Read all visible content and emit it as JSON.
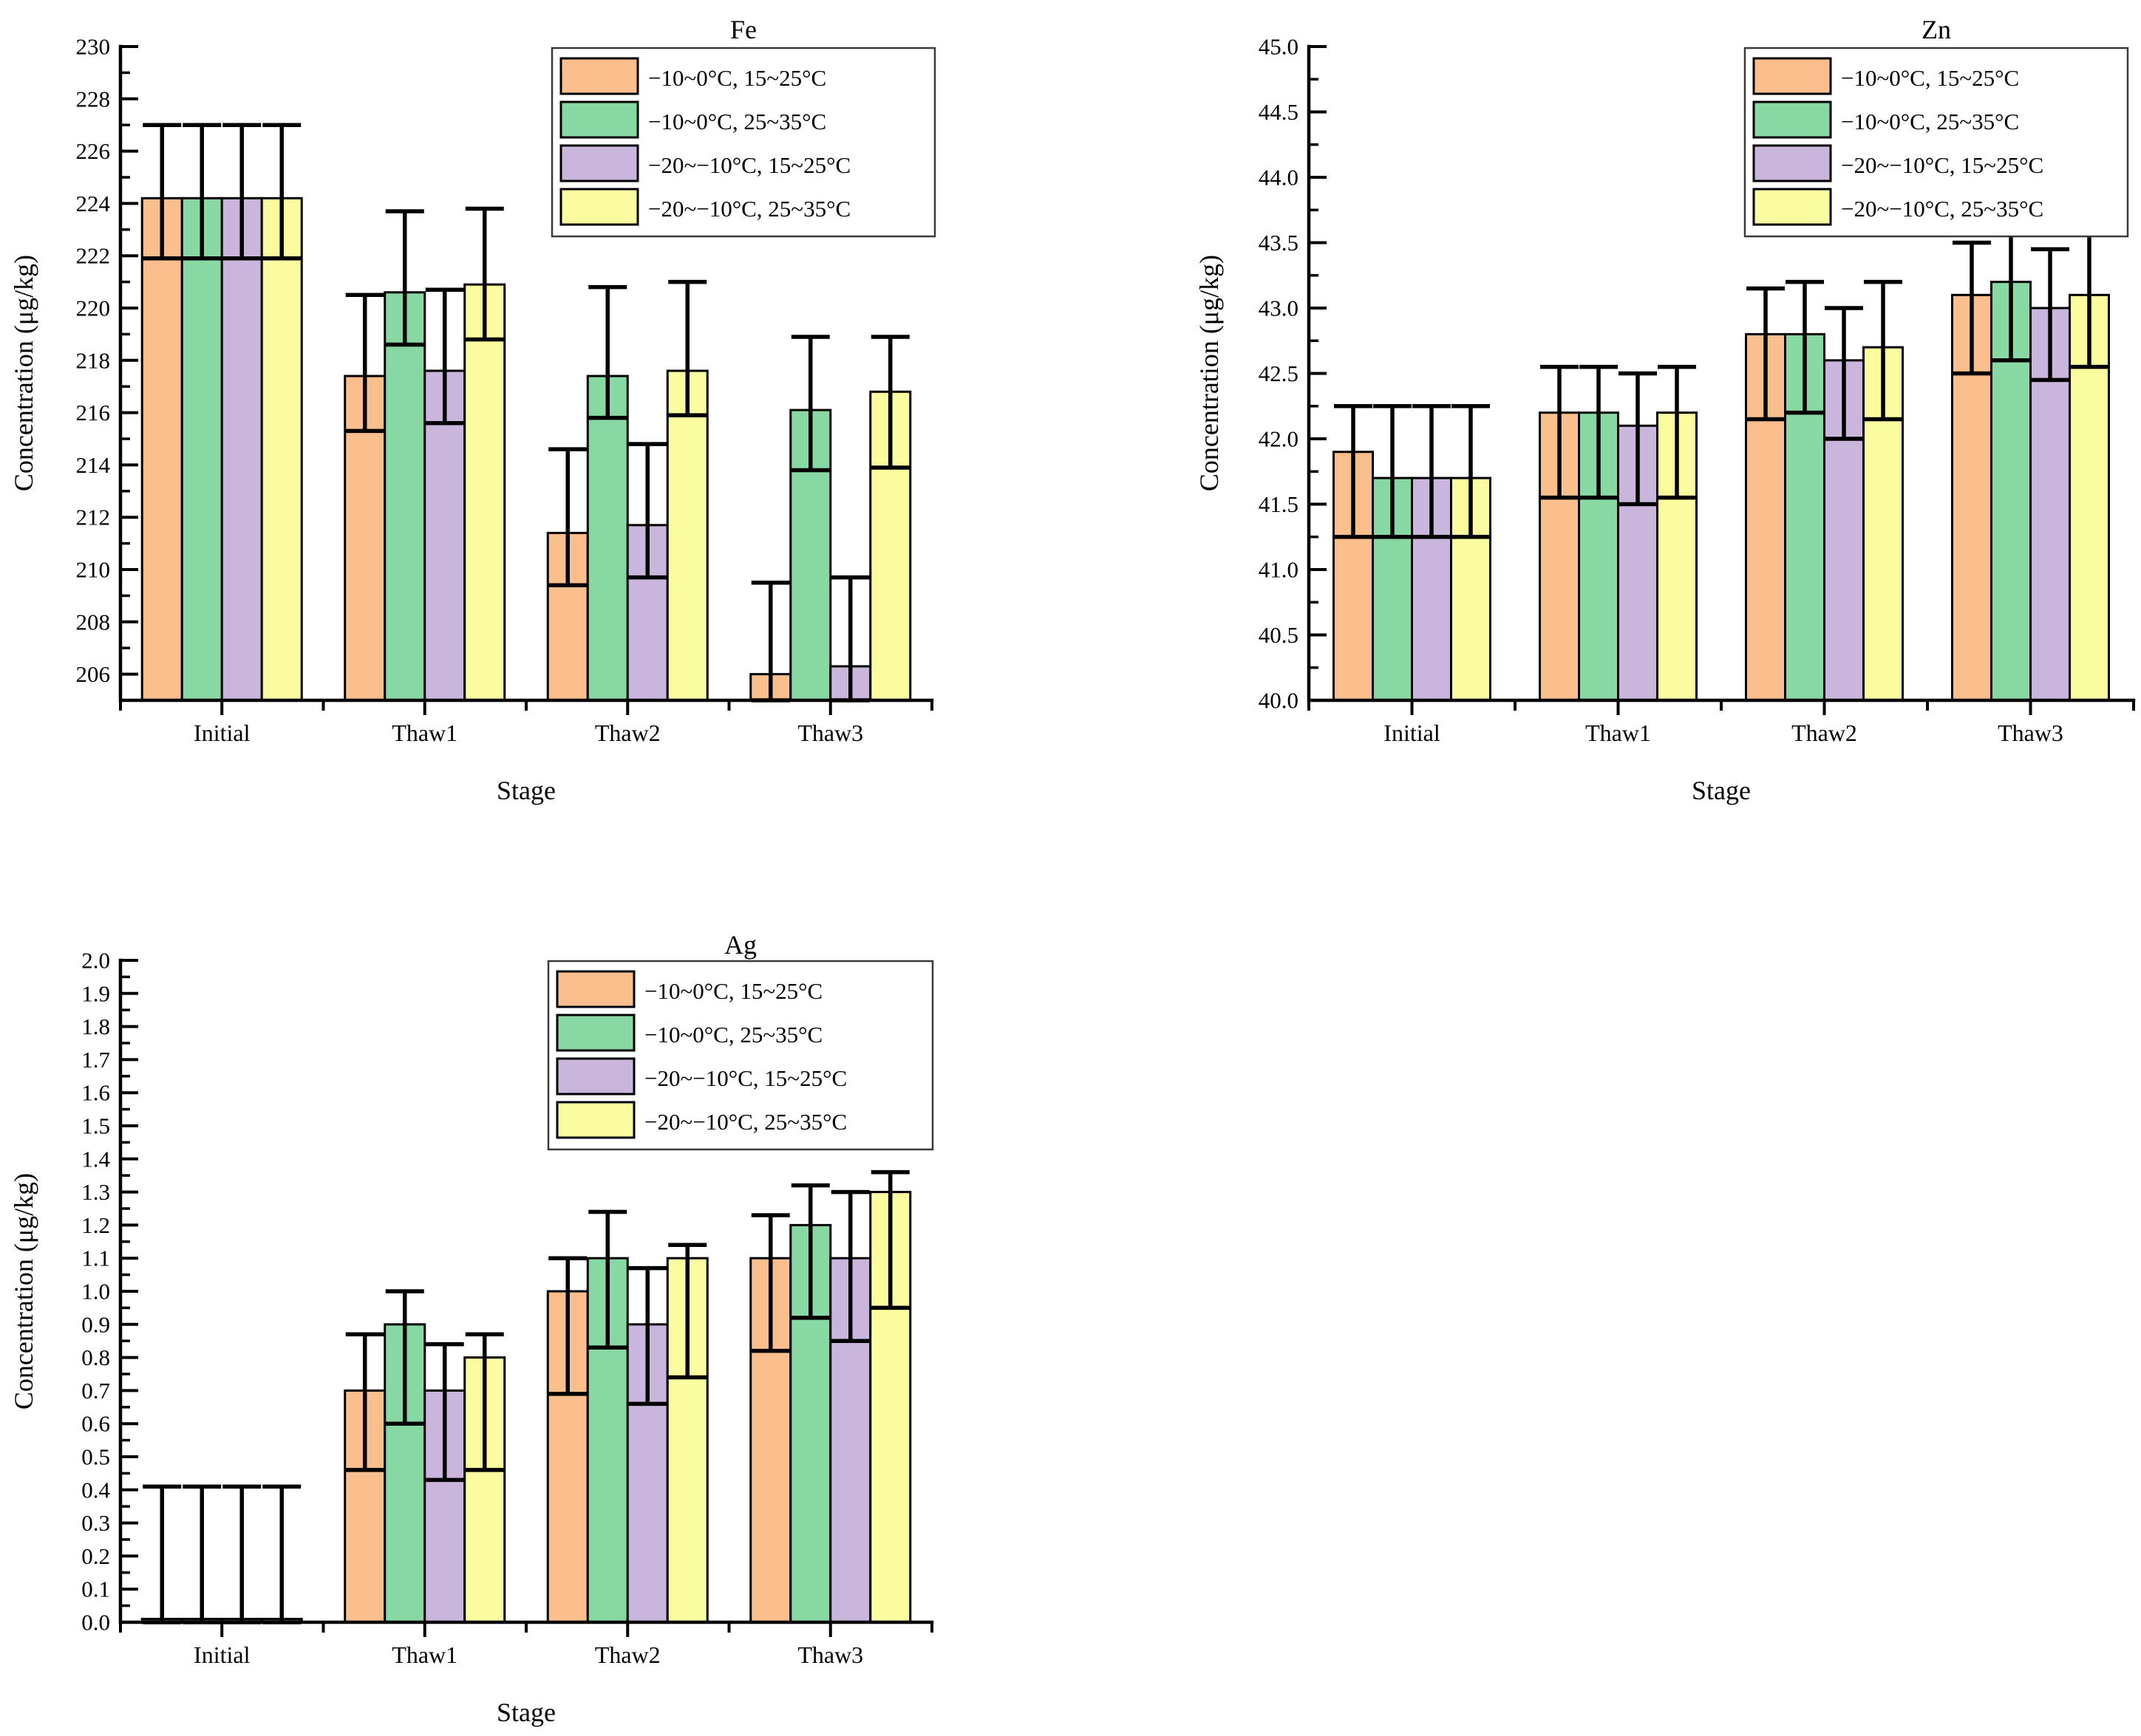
{
  "figure": {
    "background": "#FFFFFF",
    "text_color": "#000000",
    "outline_color": "#000000"
  },
  "chart_data": [
    {
      "id": "fe",
      "type": "bar",
      "title": "Fe",
      "xlabel": "Stage",
      "ylabel": "Concentration (μg/kg)",
      "categories": [
        "Initial",
        "Thaw1",
        "Thaw2",
        "Thaw3"
      ],
      "ylim": [
        205,
        230
      ],
      "ytick_step": 2,
      "ytick_minor_step": 1,
      "ytick_label_min": 206,
      "ytick_decimals": 0,
      "legend_position": "top-right",
      "grid": false,
      "series": [
        {
          "name": "−10~0°C, 15~25°C",
          "color": "#FBBF8D",
          "values": [
            224.2,
            217.4,
            211.4,
            206.0
          ],
          "err_low": [
            221.9,
            215.3,
            209.4,
            202.5
          ],
          "err_high": [
            227.0,
            220.5,
            214.6,
            209.5
          ]
        },
        {
          "name": "−10~0°C, 25~35°C",
          "color": "#88D8A3",
          "values": [
            224.2,
            220.6,
            217.4,
            216.1
          ],
          "err_low": [
            221.9,
            218.6,
            215.8,
            213.8
          ],
          "err_high": [
            227.0,
            223.7,
            220.8,
            218.9
          ]
        },
        {
          "name": "−20~−10°C, 15~25°C",
          "color": "#CAB6DD",
          "values": [
            224.2,
            217.6,
            211.7,
            206.3
          ],
          "err_low": [
            221.9,
            215.6,
            209.7,
            202.8
          ],
          "err_high": [
            227.0,
            220.7,
            214.8,
            209.7
          ]
        },
        {
          "name": "−20~−10°C, 25~35°C",
          "color": "#FBFB9F",
          "values": [
            224.2,
            220.9,
            217.6,
            216.8
          ],
          "err_low": [
            221.9,
            218.8,
            215.9,
            213.9
          ],
          "err_high": [
            227.0,
            223.8,
            221.0,
            218.9
          ]
        }
      ]
    },
    {
      "id": "zn",
      "type": "bar",
      "title": "Zn",
      "xlabel": "Stage",
      "ylabel": "Concentration (μg/kg)",
      "categories": [
        "Initial",
        "Thaw1",
        "Thaw2",
        "Thaw3"
      ],
      "ylim": [
        40.0,
        45.0
      ],
      "ytick_step": 0.5,
      "ytick_minor_step": 0.25,
      "ytick_label_min": 40.0,
      "ytick_decimals": 1,
      "legend_position": "top-right",
      "grid": false,
      "series": [
        {
          "name": "−10~0°C, 15~25°C",
          "color": "#FBBF8D",
          "values": [
            41.9,
            42.2,
            42.8,
            43.1
          ],
          "err_low": [
            41.25,
            41.55,
            42.15,
            42.5
          ],
          "err_high": [
            42.25,
            42.55,
            43.15,
            43.5
          ]
        },
        {
          "name": "−10~0°C, 25~35°C",
          "color": "#88D8A3",
          "values": [
            41.7,
            42.2,
            42.8,
            43.2
          ],
          "err_low": [
            41.25,
            41.55,
            42.2,
            42.6
          ],
          "err_high": [
            42.25,
            42.55,
            43.2,
            43.6
          ]
        },
        {
          "name": "−20~−10°C, 15~25°C",
          "color": "#CAB6DD",
          "values": [
            41.7,
            42.1,
            42.6,
            43.0
          ],
          "err_low": [
            41.25,
            41.5,
            42.0,
            42.45
          ],
          "err_high": [
            42.25,
            42.5,
            43.0,
            43.45
          ]
        },
        {
          "name": "−20~−10°C, 25~35°C",
          "color": "#FBFB9F",
          "values": [
            41.7,
            42.2,
            42.7,
            43.1
          ],
          "err_low": [
            41.25,
            41.55,
            42.15,
            42.55
          ],
          "err_high": [
            42.25,
            42.55,
            43.2,
            43.6
          ]
        }
      ]
    },
    {
      "id": "ag",
      "type": "bar",
      "title": "Ag",
      "xlabel": "Stage",
      "ylabel": "Concentration (μg/kg)",
      "categories": [
        "Initial",
        "Thaw1",
        "Thaw2",
        "Thaw3"
      ],
      "ylim": [
        0.0,
        2.0
      ],
      "ytick_step": 0.1,
      "ytick_minor_step": 0.05,
      "ytick_label_min": 0.0,
      "ytick_decimals": 1,
      "legend_position": "top-right",
      "grid": false,
      "series": [
        {
          "name": "−10~0°C, 15~25°C",
          "color": "#FBBF8D",
          "values": [
            0.01,
            0.7,
            1.0,
            1.1
          ],
          "err_low": [
            0.0,
            0.46,
            0.69,
            0.82
          ],
          "err_high": [
            0.41,
            0.87,
            1.1,
            1.23
          ]
        },
        {
          "name": "−10~0°C, 25~35°C",
          "color": "#88D8A3",
          "values": [
            0.01,
            0.9,
            1.1,
            1.2
          ],
          "err_low": [
            0.0,
            0.6,
            0.83,
            0.92
          ],
          "err_high": [
            0.41,
            1.0,
            1.24,
            1.32
          ]
        },
        {
          "name": "−20~−10°C, 15~25°C",
          "color": "#CAB6DD",
          "values": [
            0.01,
            0.7,
            0.9,
            1.1
          ],
          "err_low": [
            0.0,
            0.43,
            0.66,
            0.85
          ],
          "err_high": [
            0.41,
            0.84,
            1.07,
            1.3
          ]
        },
        {
          "name": "−20~−10°C, 25~35°C",
          "color": "#FBFB9F",
          "values": [
            0.01,
            0.8,
            1.1,
            1.3
          ],
          "err_low": [
            0.0,
            0.46,
            0.74,
            0.95
          ],
          "err_high": [
            0.41,
            0.87,
            1.14,
            1.36
          ]
        }
      ]
    }
  ]
}
